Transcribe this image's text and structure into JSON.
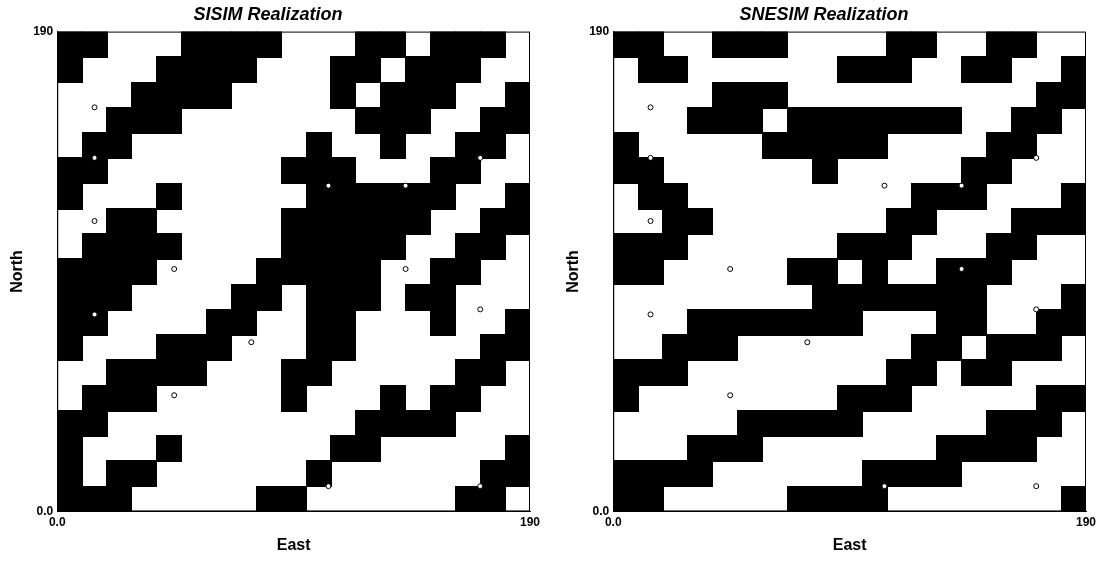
{
  "chart_data": [
    {
      "type": "heatmap",
      "title": "SISIM Realization",
      "x_label": "East",
      "y_label": "North",
      "xlim": [
        0,
        190
      ],
      "ylim": [
        0,
        190
      ],
      "xticks": [
        {
          "value": 0,
          "label": "0.0"
        },
        190
      ],
      "yticks": [
        {
          "value": 0,
          "label": "0.0"
        },
        190
      ],
      "grid": false,
      "color": "#000000",
      "marker": "circle",
      "points": {
        "x": [
          15,
          15,
          47,
          78,
          47,
          109,
          140,
          109,
          170,
          15,
          15,
          170,
          170,
          140
        ],
        "y": [
          160,
          140,
          96,
          67,
          46,
          129,
          129,
          10,
          10,
          115,
          78,
          140,
          80,
          96
        ]
      },
      "cells": [
        [
          1,
          1,
          0,
          0,
          0,
          1,
          1,
          1,
          1,
          0,
          0,
          0,
          1,
          1,
          0,
          1,
          1,
          1,
          0
        ],
        [
          1,
          0,
          0,
          0,
          1,
          1,
          1,
          1,
          0,
          0,
          0,
          1,
          1,
          0,
          1,
          1,
          1,
          0,
          0
        ],
        [
          0,
          0,
          0,
          1,
          1,
          1,
          1,
          0,
          0,
          0,
          0,
          1,
          0,
          1,
          1,
          1,
          0,
          0,
          1
        ],
        [
          0,
          0,
          1,
          1,
          1,
          0,
          0,
          0,
          0,
          0,
          0,
          0,
          1,
          1,
          1,
          0,
          0,
          1,
          1
        ],
        [
          0,
          1,
          1,
          0,
          0,
          0,
          0,
          0,
          0,
          0,
          1,
          0,
          0,
          1,
          0,
          0,
          1,
          1,
          0
        ],
        [
          1,
          1,
          0,
          0,
          0,
          0,
          0,
          0,
          0,
          1,
          1,
          1,
          0,
          0,
          0,
          1,
          1,
          0,
          0
        ],
        [
          1,
          0,
          0,
          0,
          1,
          0,
          0,
          0,
          0,
          0,
          1,
          1,
          1,
          1,
          1,
          1,
          0,
          0,
          1
        ],
        [
          0,
          0,
          1,
          1,
          0,
          0,
          0,
          0,
          0,
          1,
          1,
          1,
          1,
          1,
          1,
          0,
          0,
          1,
          1
        ],
        [
          0,
          1,
          1,
          1,
          1,
          0,
          0,
          0,
          0,
          1,
          1,
          1,
          1,
          1,
          0,
          0,
          1,
          1,
          0
        ],
        [
          1,
          1,
          1,
          1,
          0,
          0,
          0,
          0,
          1,
          1,
          1,
          1,
          1,
          0,
          0,
          1,
          1,
          0,
          0
        ],
        [
          1,
          1,
          1,
          0,
          0,
          0,
          0,
          1,
          1,
          0,
          1,
          1,
          1,
          0,
          1,
          1,
          0,
          0,
          0
        ],
        [
          1,
          1,
          0,
          0,
          0,
          0,
          1,
          1,
          0,
          0,
          1,
          1,
          0,
          0,
          0,
          1,
          0,
          0,
          1
        ],
        [
          1,
          0,
          0,
          0,
          1,
          1,
          1,
          0,
          0,
          0,
          1,
          1,
          0,
          0,
          0,
          0,
          0,
          1,
          1
        ],
        [
          0,
          0,
          1,
          1,
          1,
          1,
          0,
          0,
          0,
          1,
          1,
          0,
          0,
          0,
          0,
          0,
          1,
          1,
          0
        ],
        [
          0,
          1,
          1,
          1,
          0,
          0,
          0,
          0,
          0,
          1,
          0,
          0,
          0,
          1,
          0,
          1,
          1,
          0,
          0
        ],
        [
          1,
          1,
          0,
          0,
          0,
          0,
          0,
          0,
          0,
          0,
          0,
          0,
          1,
          1,
          1,
          1,
          0,
          0,
          0
        ],
        [
          1,
          0,
          0,
          0,
          1,
          0,
          0,
          0,
          0,
          0,
          0,
          1,
          1,
          0,
          0,
          0,
          0,
          0,
          1
        ],
        [
          1,
          0,
          1,
          1,
          0,
          0,
          0,
          0,
          0,
          0,
          1,
          0,
          0,
          0,
          0,
          0,
          0,
          1,
          1
        ],
        [
          1,
          1,
          1,
          0,
          0,
          0,
          0,
          0,
          1,
          1,
          0,
          0,
          0,
          0,
          0,
          0,
          1,
          1,
          0
        ]
      ]
    },
    {
      "type": "heatmap",
      "title": "SNESIM Realization",
      "x_label": "East",
      "y_label": "North",
      "xlim": [
        0,
        190
      ],
      "ylim": [
        0,
        190
      ],
      "xticks": [
        {
          "value": 0,
          "label": "0.0"
        },
        190
      ],
      "yticks": [
        {
          "value": 0,
          "label": "0.0"
        },
        190
      ],
      "grid": false,
      "color": "#000000",
      "marker": "circle",
      "points": {
        "x": [
          15,
          15,
          47,
          78,
          47,
          109,
          140,
          109,
          170,
          15,
          15,
          170,
          170,
          140
        ],
        "y": [
          160,
          140,
          96,
          67,
          46,
          129,
          129,
          10,
          10,
          115,
          78,
          140,
          80,
          96
        ]
      },
      "cells": [
        [
          1,
          1,
          0,
          0,
          1,
          1,
          1,
          0,
          0,
          0,
          0,
          1,
          1,
          0,
          0,
          1,
          1,
          0,
          0
        ],
        [
          0,
          1,
          1,
          0,
          0,
          0,
          0,
          0,
          0,
          1,
          1,
          1,
          0,
          0,
          1,
          1,
          0,
          0,
          1
        ],
        [
          0,
          0,
          0,
          0,
          1,
          1,
          1,
          0,
          0,
          0,
          0,
          0,
          0,
          0,
          0,
          0,
          0,
          1,
          1
        ],
        [
          0,
          0,
          0,
          1,
          1,
          1,
          0,
          1,
          1,
          1,
          1,
          1,
          1,
          1,
          0,
          0,
          1,
          1,
          0
        ],
        [
          1,
          0,
          0,
          0,
          0,
          0,
          1,
          1,
          1,
          1,
          1,
          0,
          0,
          0,
          0,
          1,
          1,
          0,
          0
        ],
        [
          1,
          1,
          0,
          0,
          0,
          0,
          0,
          0,
          1,
          0,
          0,
          0,
          0,
          0,
          1,
          1,
          0,
          0,
          0
        ],
        [
          0,
          1,
          1,
          0,
          0,
          0,
          0,
          0,
          0,
          0,
          0,
          0,
          1,
          1,
          1,
          0,
          0,
          0,
          1
        ],
        [
          0,
          0,
          1,
          1,
          0,
          0,
          0,
          0,
          0,
          0,
          0,
          1,
          1,
          0,
          0,
          0,
          1,
          1,
          1
        ],
        [
          1,
          1,
          1,
          0,
          0,
          0,
          0,
          0,
          0,
          1,
          1,
          1,
          0,
          0,
          0,
          1,
          1,
          0,
          0
        ],
        [
          1,
          1,
          0,
          0,
          0,
          0,
          0,
          1,
          1,
          0,
          1,
          0,
          0,
          1,
          1,
          1,
          0,
          0,
          0
        ],
        [
          0,
          0,
          0,
          0,
          0,
          0,
          0,
          0,
          1,
          1,
          1,
          1,
          1,
          1,
          1,
          0,
          0,
          0,
          1
        ],
        [
          0,
          0,
          0,
          1,
          1,
          1,
          1,
          1,
          1,
          1,
          0,
          0,
          0,
          1,
          1,
          0,
          0,
          1,
          1
        ],
        [
          0,
          0,
          1,
          1,
          1,
          0,
          0,
          0,
          0,
          0,
          0,
          0,
          1,
          1,
          0,
          1,
          1,
          1,
          0
        ],
        [
          1,
          1,
          1,
          0,
          0,
          0,
          0,
          0,
          0,
          0,
          0,
          1,
          1,
          0,
          1,
          1,
          0,
          0,
          0
        ],
        [
          1,
          0,
          0,
          0,
          0,
          0,
          0,
          0,
          0,
          1,
          1,
          1,
          0,
          0,
          0,
          0,
          0,
          1,
          1
        ],
        [
          0,
          0,
          0,
          0,
          0,
          1,
          1,
          1,
          1,
          1,
          0,
          0,
          0,
          0,
          0,
          1,
          1,
          1,
          0
        ],
        [
          0,
          0,
          0,
          1,
          1,
          1,
          0,
          0,
          0,
          0,
          0,
          0,
          0,
          1,
          1,
          1,
          1,
          0,
          0
        ],
        [
          1,
          1,
          1,
          1,
          0,
          0,
          0,
          0,
          0,
          0,
          1,
          1,
          1,
          1,
          0,
          0,
          0,
          0,
          0
        ],
        [
          1,
          1,
          0,
          0,
          0,
          0,
          0,
          1,
          1,
          1,
          1,
          0,
          0,
          0,
          0,
          0,
          0,
          0,
          1
        ]
      ]
    }
  ]
}
